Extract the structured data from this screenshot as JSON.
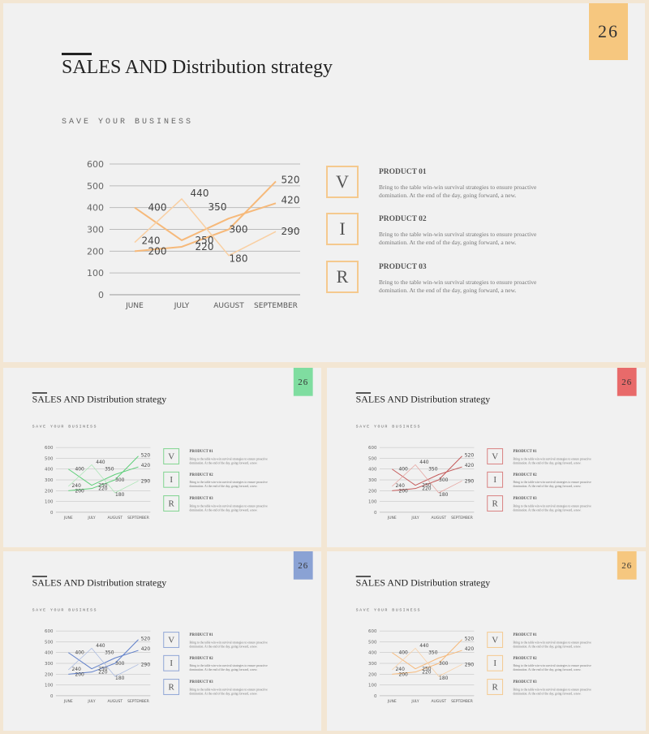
{
  "slide": {
    "number": "26",
    "title": "SALES AND Distribution strategy",
    "subtitle": "SAVE YOUR BUSINESS"
  },
  "products": [
    {
      "letter": "V",
      "title": "PRODUCT 01",
      "desc": "Bring to the table win-win survival strategies to ensure proactive domination. At the end of the day, going forward, a new."
    },
    {
      "letter": "I",
      "title": "PRODUCT 02",
      "desc": "Bring to the table win-win survival strategies to ensure proactive domination. At the end of the day, going forward, a new."
    },
    {
      "letter": "R",
      "title": "PRODUCT 03",
      "desc": "Bring to the table win-win survival strategies to ensure proactive domination. At the end of the day, going forward, a new."
    }
  ],
  "chart_data": {
    "type": "line",
    "categories": [
      "JUNE",
      "JULY",
      "AUGUST",
      "SEPTEMBER"
    ],
    "ylim": [
      0,
      600
    ],
    "yticks": [
      0,
      100,
      200,
      300,
      400,
      500,
      600
    ],
    "grid": true,
    "series": [
      {
        "values": [
          200,
          220,
          300,
          520
        ],
        "labels_shown": [
          "200",
          "220",
          "300",
          "520"
        ]
      },
      {
        "values": [
          400,
          250,
          350,
          420
        ],
        "labels_shown": [
          "400",
          "250",
          "350",
          "420"
        ]
      },
      {
        "values": [
          240,
          440,
          180,
          290
        ],
        "labels_shown": [
          "240",
          "440",
          "180",
          "290"
        ]
      }
    ]
  },
  "themes": [
    {
      "accent": "#f6c77f",
      "line": "#f6b97a",
      "line_light": "#f9cfa2",
      "box": "#f5c98e"
    },
    {
      "accent": "#7fdda0",
      "line": "#5fcf7a",
      "line_light": "#a9e6b4",
      "box": "#7fd48f"
    },
    {
      "accent": "#e86a6a",
      "line": "#c55b5b",
      "line_light": "#e6a4a0",
      "box": "#d98080"
    },
    {
      "accent": "#8aa2d4",
      "line": "#5f7fc9",
      "line_light": "#a8b9e0",
      "box": "#8fa5d6"
    },
    {
      "accent": "#f6c77f",
      "line": "#f6b97a",
      "line_light": "#f9cfa2",
      "box": "#f5c98e"
    }
  ]
}
